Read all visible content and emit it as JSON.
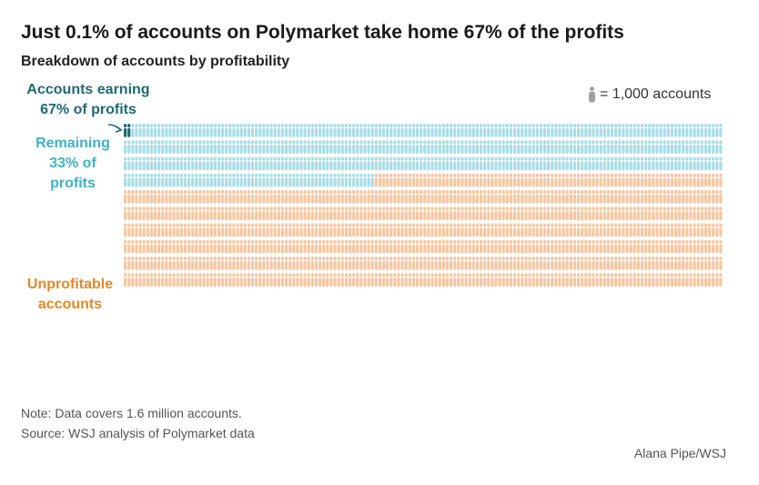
{
  "title": "Just 0.1% of accounts on Polymarket take home 67% of the profits",
  "subtitle": "Breakdown of accounts by profitability",
  "key_label": "= 1,000 accounts",
  "labels": {
    "top_line1": "Accounts earning",
    "top_line2": "67% of profits",
    "rem_line1": "Remaining",
    "rem_line2": "33% of",
    "rem_line3": "profits",
    "unp_line1": "Unprofitable",
    "unp_line2": "accounts"
  },
  "note": "Note: Data covers 1.6 million accounts.",
  "source": "Source: WSJ analysis of Polymarket data",
  "credit": "Alana Pipe/WSJ",
  "colors": {
    "top": "#1f6a72",
    "remaining": "#a9dde6",
    "unprofitable": "#f7c6a0",
    "key": "#9aa0a4"
  },
  "chart_data": {
    "type": "waffle",
    "unit": "1,000 accounts",
    "total_accounts": 1600000,
    "series": [
      {
        "name": "Accounts earning 67% of profits",
        "icons": 2
      },
      {
        "name": "Remaining 33% of profits",
        "icons": 545
      },
      {
        "name": "Unprofitable accounts",
        "icons": 1053
      }
    ]
  }
}
